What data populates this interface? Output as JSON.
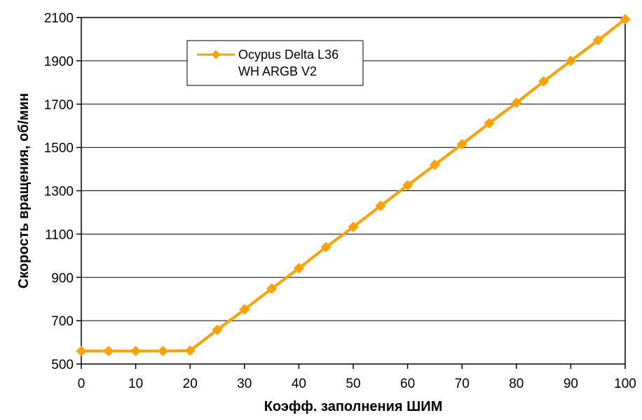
{
  "chart_data": {
    "type": "line",
    "title": "",
    "xlabel": "Коэфф. заполнения ШИМ",
    "ylabel": "Скорость вращения, об/мин",
    "xlim": [
      0,
      100
    ],
    "ylim": [
      500,
      2100
    ],
    "xticks": [
      0,
      10,
      20,
      30,
      40,
      50,
      60,
      70,
      80,
      90,
      100
    ],
    "yticks": [
      500,
      700,
      900,
      1100,
      1300,
      1500,
      1700,
      1900,
      2100
    ],
    "grid": true,
    "legend": {
      "placement": "top-left",
      "lines": [
        "Ocypus Delta L36",
        "WH ARGB V2"
      ]
    },
    "series": [
      {
        "name": "Ocypus Delta L36 WH ARGB V2",
        "color": "#FFA100",
        "marker": "diamond",
        "x": [
          0,
          5,
          10,
          15,
          20,
          25,
          30,
          35,
          40,
          45,
          50,
          55,
          60,
          65,
          70,
          75,
          80,
          85,
          90,
          95,
          100
        ],
        "y": [
          560,
          560,
          560,
          560,
          562,
          658,
          752,
          848,
          942,
          1040,
          1133,
          1230,
          1325,
          1420,
          1515,
          1612,
          1706,
          1805,
          1900,
          1995,
          2092
        ]
      }
    ]
  }
}
